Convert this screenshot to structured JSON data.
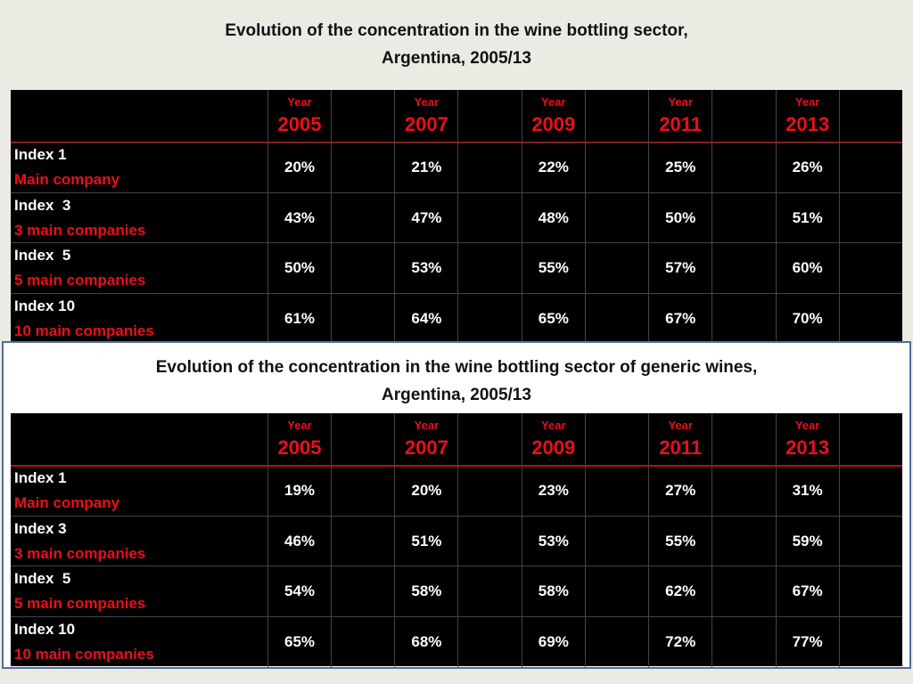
{
  "slide": {
    "tables": [
      {
        "title": [
          "Evolution of the concentration in the wine bottling sector,",
          "Argentina, 2005/13"
        ],
        "columns": [
          {
            "label": "Year",
            "year": "2005"
          },
          {
            "label": "Year",
            "year": "2007"
          },
          {
            "label": "Year",
            "year": "2009"
          },
          {
            "label": "Year",
            "year": "2011"
          },
          {
            "label": "Year",
            "year": "2013"
          }
        ],
        "rows": [
          {
            "name": "Index 1",
            "desc": "Main company",
            "values": [
              "20%",
              "21%",
              "22%",
              "25%",
              "26%"
            ]
          },
          {
            "name": "Index  3",
            "desc": "3 main companies",
            "values": [
              "43%",
              "47%",
              "48%",
              "50%",
              "51%"
            ]
          },
          {
            "name": "Index  5",
            "desc": "5 main companies",
            "values": [
              "50%",
              "53%",
              "55%",
              "57%",
              "60%"
            ]
          },
          {
            "name": "Index 10",
            "desc": "10 main companies",
            "values": [
              "61%",
              "64%",
              "65%",
              "67%",
              "70%"
            ]
          }
        ]
      },
      {
        "title": [
          "Evolution of the concentration in the wine bottling sector of generic wines,",
          "Argentina, 2005/13"
        ],
        "columns": [
          {
            "label": "Year",
            "year": "2005"
          },
          {
            "label": "Year",
            "year": "2007"
          },
          {
            "label": "Year",
            "year": "2009"
          },
          {
            "label": "Year",
            "year": "2011"
          },
          {
            "label": "Year",
            "year": "2013"
          }
        ],
        "rows": [
          {
            "name": "Index 1",
            "desc": "Main company",
            "values": [
              "19%",
              "20%",
              "23%",
              "27%",
              "31%"
            ]
          },
          {
            "name": "Index 3",
            "desc": "3 main companies",
            "values": [
              "46%",
              "51%",
              "53%",
              "55%",
              "59%"
            ]
          },
          {
            "name": "Index  5",
            "desc": "5 main companies",
            "values": [
              "54%",
              "58%",
              "58%",
              "62%",
              "67%"
            ]
          },
          {
            "name": "Index 10",
            "desc": "10 main companies",
            "values": [
              "65%",
              "68%",
              "69%",
              "72%",
              "77%"
            ]
          }
        ]
      }
    ]
  }
}
